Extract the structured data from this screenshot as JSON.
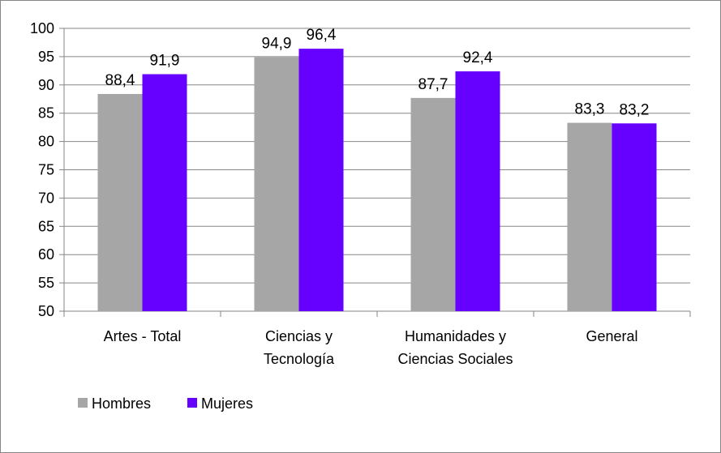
{
  "chart_data": {
    "type": "bar",
    "categories": [
      [
        "Artes - Total"
      ],
      [
        "Ciencias y",
        "Tecnología"
      ],
      [
        "Humanidades y",
        "Ciencias Sociales"
      ],
      [
        "General"
      ]
    ],
    "series": [
      {
        "name": "Hombres",
        "color": "#a6a6a6",
        "values": [
          88.4,
          94.9,
          87.7,
          83.3
        ],
        "labels": [
          "88,4",
          "94,9",
          "87,7",
          "83,3"
        ]
      },
      {
        "name": "Mujeres",
        "color": "#6600ff",
        "values": [
          91.9,
          96.4,
          92.4,
          83.2
        ],
        "labels": [
          "91,9",
          "96,4",
          "92,4",
          "83,2"
        ]
      }
    ],
    "ylim": [
      50,
      100
    ],
    "yticks": [
      50,
      55,
      60,
      65,
      70,
      75,
      80,
      85,
      90,
      95,
      100
    ],
    "grid": true,
    "legend": "bottom-left",
    "title": "",
    "xlabel": "",
    "ylabel": ""
  }
}
